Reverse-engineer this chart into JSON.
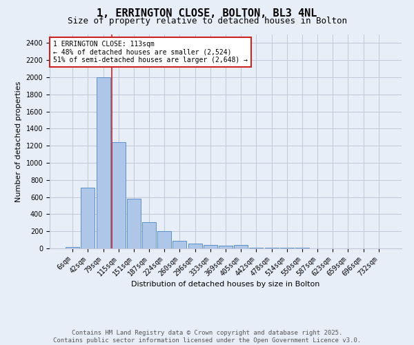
{
  "title": "1, ERRINGTON CLOSE, BOLTON, BL3 4NL",
  "subtitle": "Size of property relative to detached houses in Bolton",
  "xlabel": "Distribution of detached houses by size in Bolton",
  "ylabel": "Number of detached properties",
  "bar_labels": [
    "6sqm",
    "42sqm",
    "79sqm",
    "115sqm",
    "151sqm",
    "187sqm",
    "224sqm",
    "260sqm",
    "296sqm",
    "333sqm",
    "369sqm",
    "405sqm",
    "442sqm",
    "478sqm",
    "514sqm",
    "550sqm",
    "587sqm",
    "623sqm",
    "659sqm",
    "696sqm",
    "732sqm"
  ],
  "bar_values": [
    20,
    710,
    2000,
    1240,
    580,
    310,
    200,
    85,
    55,
    38,
    35,
    38,
    12,
    10,
    8,
    5,
    4,
    3,
    3,
    2,
    2
  ],
  "bar_color": "#aec6e8",
  "bar_edge_color": "#5b8fc9",
  "background_color": "#e8eef8",
  "grid_color": "#c0c8d8",
  "red_line_index": 3,
  "red_line_color": "#cc2222",
  "annotation_text": "1 ERRINGTON CLOSE: 113sqm\n← 48% of detached houses are smaller (2,524)\n51% of semi-detached houses are larger (2,648) →",
  "annotation_box_color": "#ffffff",
  "annotation_box_edge": "#cc2222",
  "ylim": [
    0,
    2500
  ],
  "yticks": [
    0,
    200,
    400,
    600,
    800,
    1000,
    1200,
    1400,
    1600,
    1800,
    2000,
    2200,
    2400
  ],
  "footer_line1": "Contains HM Land Registry data © Crown copyright and database right 2025.",
  "footer_line2": "Contains public sector information licensed under the Open Government Licence v3.0.",
  "title_fontsize": 11,
  "subtitle_fontsize": 9,
  "axis_label_fontsize": 8,
  "tick_fontsize": 7,
  "annotation_fontsize": 7,
  "footer_fontsize": 6.5
}
